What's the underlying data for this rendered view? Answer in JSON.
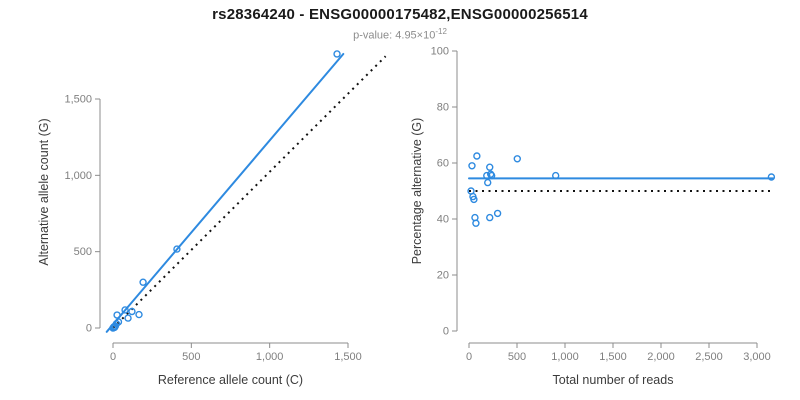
{
  "header": {
    "title": "rs28364240 - ENSG00000175482,ENSG00000256514",
    "subtitle_prefix": "p-value: 4.95×10",
    "subtitle_exponent": "-12"
  },
  "colors": {
    "accent_blue": "#2E8AE0",
    "axis_gray": "#8c8c8c",
    "tick_text": "#7f7f7f",
    "label_text": "#3c3c3c",
    "dotted_black": "#111111"
  },
  "chart_data": [
    {
      "type": "scatter",
      "name": "allele-counts",
      "xlabel": "Reference allele count (C)",
      "ylabel": "Alternative allele count (G)",
      "xlim": [
        0,
        1500
      ],
      "ylim": [
        0,
        1500
      ],
      "xticks": [
        0,
        500,
        1000,
        1500
      ],
      "yticks": [
        0,
        500,
        1000,
        1500
      ],
      "grid": false,
      "legend": "none",
      "points": [
        [
          0,
          0
        ],
        [
          3,
          2
        ],
        [
          6,
          8
        ],
        [
          10,
          4
        ],
        [
          15,
          12
        ],
        [
          22,
          28
        ],
        [
          35,
          40
        ],
        [
          26,
          85
        ],
        [
          77,
          118
        ],
        [
          96,
          65
        ],
        [
          121,
          108
        ],
        [
          166,
          88
        ],
        [
          192,
          300
        ],
        [
          408,
          517
        ],
        [
          1430,
          1795
        ]
      ],
      "lines": [
        {
          "name": "fit-line",
          "style": "solid",
          "x": [
            -40,
            1470
          ],
          "y": [
            -25,
            1795
          ]
        },
        {
          "name": "identity-line",
          "style": "dotted",
          "x": [
            0,
            1740
          ],
          "y": [
            0,
            1780
          ]
        }
      ]
    },
    {
      "type": "scatter",
      "name": "percentage-vs-reads",
      "xlabel": "Total number of reads",
      "ylabel": "Percentage alternative (G)",
      "xlim": [
        0,
        3000
      ],
      "ylim": [
        0,
        100
      ],
      "xticks": [
        0,
        500,
        1000,
        1500,
        2000,
        2500,
        3000
      ],
      "yticks": [
        0,
        20,
        40,
        60,
        80,
        100
      ],
      "grid": false,
      "legend": "none",
      "points": [
        [
          21,
          50
        ],
        [
          31,
          59
        ],
        [
          41,
          48
        ],
        [
          51,
          47
        ],
        [
          62,
          40.5
        ],
        [
          72,
          38.5
        ],
        [
          82,
          62.5
        ],
        [
          185,
          55.5
        ],
        [
          195,
          53
        ],
        [
          216,
          58.5
        ],
        [
          226,
          56
        ],
        [
          236,
          55.5
        ],
        [
          216,
          40.5
        ],
        [
          298,
          42
        ],
        [
          503,
          61.5
        ],
        [
          903,
          55.5
        ],
        [
          3150,
          55
        ]
      ],
      "lines": [
        {
          "name": "fit-line",
          "style": "solid",
          "x": [
            0,
            3170
          ],
          "y": [
            54.5,
            54.5
          ]
        },
        {
          "name": "identity-line",
          "style": "dotted",
          "x": [
            0,
            3170
          ],
          "y": [
            50,
            50
          ]
        }
      ]
    }
  ]
}
